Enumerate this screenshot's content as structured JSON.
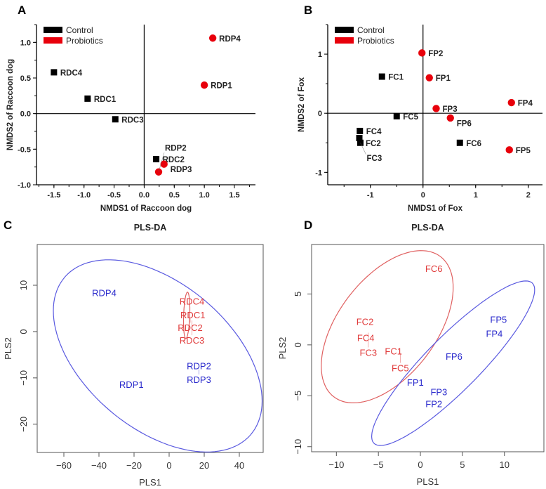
{
  "colors": {
    "control": "#000000",
    "probiotics": "#e8000b",
    "pls_red": "#e03a3a",
    "pls_blue": "#2a2acc",
    "ellipse_red": "#e06060",
    "ellipse_blue": "#5a5ae0"
  },
  "chart_data": [
    {
      "panel": "A",
      "type": "scatter",
      "title": "",
      "xlabel": "NMDS1 of Raccoon dog",
      "ylabel": "NMDS2 of Raccoon dog",
      "xlim": [
        -1.79,
        1.85
      ],
      "ylim": [
        -1.0,
        1.25
      ],
      "xticks": [
        -1.5,
        -1.0,
        -0.5,
        0.0,
        0.5,
        1.0,
        1.5
      ],
      "xtick_labels": [
        "-1.5",
        "-1.0",
        "-0.5",
        "0.0",
        "0.5",
        "1.0",
        "1.5"
      ],
      "yticks": [
        -1.0,
        -0.5,
        0.0,
        0.5,
        1.0
      ],
      "ytick_labels": [
        "-1.0",
        "-0.5",
        "0.0",
        "0.5",
        "1.0"
      ],
      "minor_step": 0.25,
      "legend": {
        "placement": "top-left",
        "entries": [
          {
            "label": "Control",
            "color": "#000000"
          },
          {
            "label": "Probiotics",
            "color": "#e8000b"
          }
        ]
      },
      "series": [
        {
          "name": "Control",
          "marker": "square",
          "color": "#000000",
          "points": [
            {
              "label": "RDC4",
              "x": -1.5,
              "y": 0.58
            },
            {
              "label": "RDC1",
              "x": -0.94,
              "y": 0.21
            },
            {
              "label": "RDC3",
              "x": -0.48,
              "y": -0.08
            },
            {
              "label": "RDC2",
              "x": 0.2,
              "y": -0.64
            }
          ]
        },
        {
          "name": "Probiotics",
          "marker": "circle",
          "color": "#e8000b",
          "points": [
            {
              "label": "RDP4",
              "x": 1.14,
              "y": 1.06
            },
            {
              "label": "RDP1",
              "x": 1.0,
              "y": 0.4
            },
            {
              "label": "RDP3",
              "x": 0.33,
              "y": -0.71
            },
            {
              "label": "RDP2",
              "x": 0.24,
              "y": -0.82
            }
          ]
        }
      ]
    },
    {
      "panel": "B",
      "type": "scatter",
      "title": "",
      "xlabel": "NMDS1 of Fox",
      "ylabel": "NMDS2 of Fox",
      "xlim": [
        -1.81,
        2.27
      ],
      "ylim": [
        -1.21,
        1.5
      ],
      "xticks": [
        -1,
        0,
        1,
        2
      ],
      "xtick_labels": [
        "-1",
        "0",
        "1",
        "2"
      ],
      "yticks": [
        -1,
        0,
        1
      ],
      "ytick_labels": [
        "-1",
        "0",
        "1"
      ],
      "minor_step": 0.5,
      "legend": {
        "placement": "top-left",
        "entries": [
          {
            "label": "Control",
            "color": "#000000"
          },
          {
            "label": "Probiotics",
            "color": "#e8000b"
          }
        ]
      },
      "series": [
        {
          "name": "Control",
          "marker": "square",
          "color": "#000000",
          "points": [
            {
              "label": "FC1",
              "x": -0.78,
              "y": 0.62
            },
            {
              "label": "FC5",
              "x": -0.5,
              "y": -0.05
            },
            {
              "label": "FC4",
              "x": -1.2,
              "y": -0.3
            },
            {
              "label": "FC2",
              "x": -1.21,
              "y": -0.42
            },
            {
              "label": "FC3",
              "x": -1.19,
              "y": -0.5
            },
            {
              "label": "FC6",
              "x": 0.7,
              "y": -0.5
            }
          ]
        },
        {
          "name": "Probiotics",
          "marker": "circle",
          "color": "#e8000b",
          "points": [
            {
              "label": "FP2",
              "x": -0.02,
              "y": 1.02
            },
            {
              "label": "FP1",
              "x": 0.12,
              "y": 0.6
            },
            {
              "label": "FP4",
              "x": 1.68,
              "y": 0.18
            },
            {
              "label": "FP3",
              "x": 0.25,
              "y": 0.08
            },
            {
              "label": "FP6",
              "x": 0.52,
              "y": -0.08
            },
            {
              "label": "FP5",
              "x": 1.64,
              "y": -0.62
            }
          ]
        }
      ]
    },
    {
      "panel": "C",
      "type": "scatter",
      "title": "PLS-DA",
      "xlabel": "PLS1",
      "ylabel": "PLS2",
      "xlim": [
        -75.2,
        53.6
      ],
      "ylim": [
        -26.1,
        18.8
      ],
      "xticks": [
        -60,
        -40,
        -20,
        0,
        20,
        40
      ],
      "xtick_labels": [
        "−60",
        "−40",
        "−20",
        "0",
        "20",
        "40"
      ],
      "yticks": [
        -20,
        -10,
        0,
        10
      ],
      "ytick_labels": [
        "−20",
        "−10",
        "0",
        "10"
      ],
      "series": [
        {
          "name": "Control",
          "marker": "text",
          "color": "#e03a3a",
          "points": [
            {
              "label": "RDC4",
              "x": 13,
              "y": 6.6
            },
            {
              "label": "RDC1",
              "x": 13.5,
              "y": 3.6
            },
            {
              "label": "RDC2",
              "x": 12,
              "y": 3.0
            },
            {
              "label": "RDC3",
              "x": 13,
              "y": 2.4
            }
          ]
        },
        {
          "name": "Probiotics",
          "marker": "text",
          "color": "#2a2acc",
          "points": [
            {
              "label": "RDP4",
              "x": -37,
              "y": 8.4
            },
            {
              "label": "RDP2",
              "x": 17,
              "y": -7.4
            },
            {
              "label": "RDP3",
              "x": 17,
              "y": -8.2
            },
            {
              "label": "RDP1",
              "x": -21.5,
              "y": -11.4
            }
          ]
        }
      ],
      "ellipses": [
        {
          "group": "Control",
          "color": "#e06060",
          "center": [
            10,
            3.5
          ],
          "semi_x": 1.8,
          "semi_y": 5.0,
          "phase_deg": 75
        },
        {
          "group": "Probiotics",
          "color": "#5a5ae0",
          "center": [
            -6.5,
            -5.25
          ],
          "semi_x": 59.5,
          "semi_y": 20.75,
          "phase_deg": 118
        }
      ]
    },
    {
      "panel": "D",
      "type": "scatter",
      "title": "PLS-DA",
      "xlabel": "PLS1",
      "ylabel": "PLS2",
      "xlim": [
        -12.95,
        14.7
      ],
      "ylim": [
        -10.5,
        9.86
      ],
      "xticks": [
        -10,
        -5,
        0,
        5,
        10
      ],
      "xtick_labels": [
        "−10",
        "−5",
        "0",
        "5",
        "10"
      ],
      "yticks": [
        -10,
        -5,
        0,
        5
      ],
      "ytick_labels": [
        "−10",
        "−5",
        "0",
        "5"
      ],
      "series": [
        {
          "name": "Control",
          "marker": "text",
          "color": "#e03a3a",
          "points": [
            {
              "label": "FC6",
              "x": 1.6,
              "y": 7.5
            },
            {
              "label": "FC2",
              "x": -6.6,
              "y": 2.3
            },
            {
              "label": "FC4",
              "x": -6.5,
              "y": 1.2
            },
            {
              "label": "FC3",
              "x": -6.2,
              "y": 1.2
            },
            {
              "label": "FC1",
              "x": -3.2,
              "y": -0.6
            },
            {
              "label": "FC5",
              "x": -2.4,
              "y": -0.8
            }
          ]
        },
        {
          "name": "Probiotics",
          "marker": "text",
          "color": "#2a2acc",
          "points": [
            {
              "label": "FP5",
              "x": 9.3,
              "y": 2.5
            },
            {
              "label": "FP4",
              "x": 8.8,
              "y": 1.6
            },
            {
              "label": "FP6",
              "x": 4.0,
              "y": -1.1
            },
            {
              "label": "FP1",
              "x": -0.6,
              "y": -3.2
            },
            {
              "label": "FP3",
              "x": 2.2,
              "y": -4.6
            },
            {
              "label": "FP2",
              "x": 1.6,
              "y": -5.3
            }
          ]
        }
      ],
      "ellipses": [
        {
          "group": "Control",
          "color": "#e06060",
          "center": [
            -3.95,
            1.78
          ],
          "semi_x": 7.85,
          "semi_y": 7.48,
          "phase_deg": 59
        },
        {
          "group": "Probiotics",
          "color": "#5a5ae0",
          "center": [
            3.9,
            -1.8
          ],
          "semi_x": 9.7,
          "semi_y": 8.08,
          "phase_deg": 27
        }
      ]
    }
  ]
}
